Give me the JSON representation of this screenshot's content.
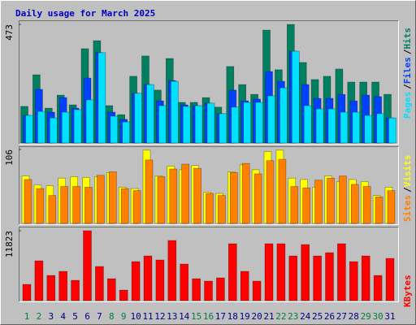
{
  "chart_data": [
    {
      "type": "bar",
      "title": "Daily usage for March 2025",
      "ylim": [
        0,
        473
      ],
      "yticks": [
        473
      ],
      "legend_separator": "/",
      "series": [
        {
          "name": "Hits",
          "color": "#008060",
          "values": [
            146,
            272,
            139,
            191,
            152,
            376,
            408,
            149,
            113,
            266,
            347,
            211,
            337,
            162,
            162,
            181,
            143,
            305,
            233,
            194,
            450,
            292,
            473,
            321,
            253,
            266,
            295,
            243,
            243,
            243,
            194
          ]
        },
        {
          "name": "Files",
          "color": "#0040ff",
          "values": [
            110,
            214,
            123,
            181,
            139,
            259,
            360,
            123,
            94,
            198,
            233,
            168,
            249,
            152,
            149,
            159,
            117,
            211,
            168,
            175,
            285,
            246,
            366,
            233,
            178,
            178,
            194,
            168,
            191,
            185,
            100
          ]
        },
        {
          "name": "Pages",
          "color": "#00e0ff",
          "values": [
            110,
            126,
            100,
            123,
            133,
            172,
            360,
            107,
            84,
            198,
            233,
            149,
            246,
            146,
            149,
            159,
            117,
            143,
            162,
            162,
            188,
            220,
            366,
            149,
            136,
            136,
            123,
            123,
            110,
            117,
            100
          ]
        }
      ]
    },
    {
      "type": "bar",
      "ylim": [
        0,
        106
      ],
      "yticks": [
        106
      ],
      "legend_separator": "/",
      "series": [
        {
          "name": "Visits",
          "color": "#ffff00",
          "values": [
            68,
            55,
            54,
            65,
            67,
            66,
            67,
            73,
            52,
            50,
            105,
            68,
            82,
            77,
            83,
            45,
            43,
            74,
            84,
            77,
            103,
            105,
            65,
            63,
            52,
            68,
            60,
            63,
            60,
            40,
            52
          ]
        },
        {
          "name": "Sites",
          "color": "#ff8000",
          "values": [
            63,
            50,
            40,
            53,
            53,
            52,
            69,
            74,
            50,
            47,
            91,
            67,
            78,
            85,
            79,
            43,
            40,
            73,
            86,
            71,
            90,
            92,
            53,
            51,
            62,
            65,
            68,
            56,
            53,
            38,
            47
          ]
        }
      ]
    },
    {
      "type": "bar",
      "ylim": [
        0,
        11823
      ],
      "yticks": [
        11823
      ],
      "categories": [
        "1",
        "2",
        "3",
        "4",
        "5",
        "6",
        "7",
        "8",
        "9",
        "10",
        "11",
        "12",
        "13",
        "14",
        "15",
        "16",
        "17",
        "18",
        "19",
        "20",
        "21",
        "22",
        "23",
        "24",
        "25",
        "26",
        "27",
        "28",
        "29",
        "30",
        "31"
      ],
      "category_colors": [
        "#008040",
        "#008040",
        "#000080",
        "#000080",
        "#000080",
        "#000080",
        "#000080",
        "#008040",
        "#008040",
        "#000080",
        "#000080",
        "#000080",
        "#000080",
        "#000080",
        "#008040",
        "#008040",
        "#000080",
        "#000080",
        "#000080",
        "#000080",
        "#000080",
        "#008040",
        "#008040",
        "#000080",
        "#000080",
        "#000080",
        "#000080",
        "#000080",
        "#008040",
        "#008040",
        "#000080"
      ],
      "series": [
        {
          "name": "KBytes",
          "color": "#ff0000",
          "values": [
            2750,
            6737,
            4262,
            4950,
            3437,
            11823,
            5775,
            3712,
            1787,
            6600,
            7562,
            6875,
            10175,
            6187,
            3712,
            3300,
            3850,
            9625,
            4950,
            3300,
            9625,
            9625,
            7562,
            9487,
            7562,
            8112,
            9625,
            6600,
            7562,
            4262,
            7150
          ]
        }
      ]
    }
  ]
}
